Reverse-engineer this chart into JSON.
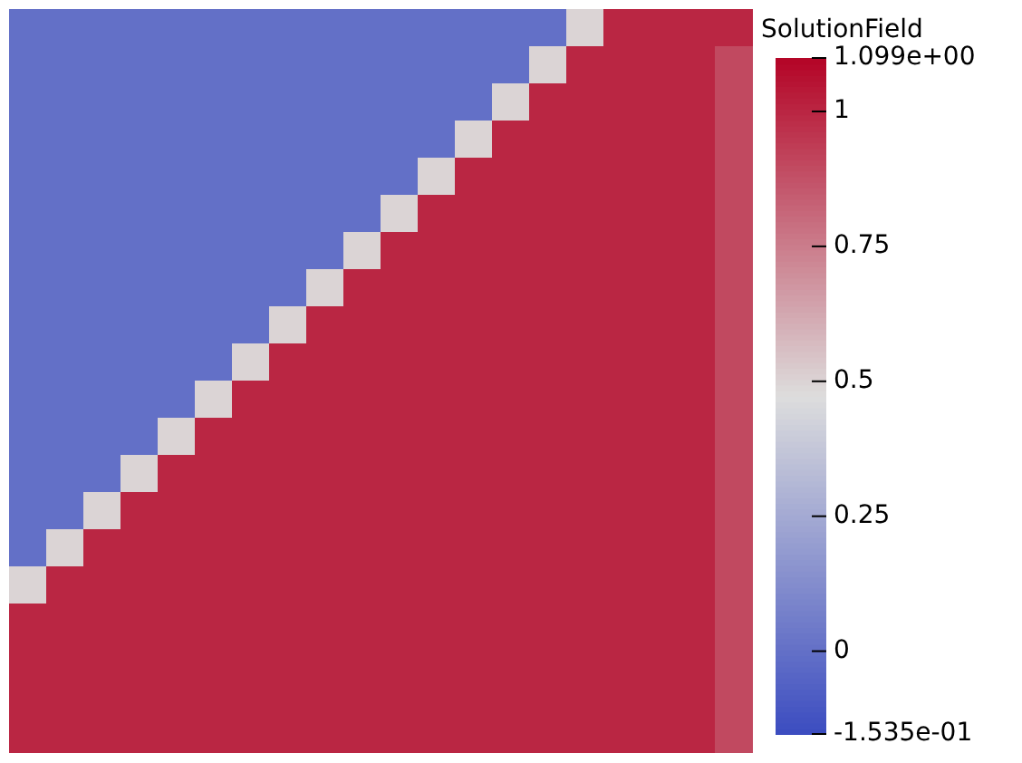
{
  "chart_data": {
    "type": "heatmap",
    "clabel": "SolutionField",
    "categories": [
      null,
      null,
      null,
      null,
      null,
      null,
      null,
      null,
      null,
      null,
      null,
      null,
      null,
      null,
      null,
      null,
      null,
      null,
      null,
      null
    ],
    "y_categories": [
      null,
      null,
      null,
      null,
      null,
      null,
      null,
      null,
      null,
      null,
      null,
      null,
      null,
      null,
      null,
      null,
      null,
      null,
      null,
      null
    ],
    "cells": [
      [
        0,
        0,
        0,
        0,
        0,
        0,
        0,
        0,
        0,
        0,
        0,
        0,
        0,
        0,
        0,
        0.5,
        1,
        1,
        1,
        1
      ],
      [
        0,
        0,
        0,
        0,
        0,
        0,
        0,
        0,
        0,
        0,
        0,
        0,
        0,
        0,
        0.5,
        1,
        1,
        1,
        1,
        0.9
      ],
      [
        0,
        0,
        0,
        0,
        0,
        0,
        0,
        0,
        0,
        0,
        0,
        0,
        0,
        0.5,
        1,
        1,
        1,
        1,
        1,
        0.9
      ],
      [
        0,
        0,
        0,
        0,
        0,
        0,
        0,
        0,
        0,
        0,
        0,
        0,
        0.5,
        1,
        1,
        1,
        1,
        1,
        1,
        0.9
      ],
      [
        0,
        0,
        0,
        0,
        0,
        0,
        0,
        0,
        0,
        0,
        0,
        0.5,
        1,
        1,
        1,
        1,
        1,
        1,
        1,
        0.9
      ],
      [
        0,
        0,
        0,
        0,
        0,
        0,
        0,
        0,
        0,
        0,
        0.5,
        1,
        1,
        1,
        1,
        1,
        1,
        1,
        1,
        0.9
      ],
      [
        0,
        0,
        0,
        0,
        0,
        0,
        0,
        0,
        0,
        0.5,
        1,
        1,
        1,
        1,
        1,
        1,
        1,
        1,
        1,
        0.9
      ],
      [
        0,
        0,
        0,
        0,
        0,
        0,
        0,
        0,
        0.5,
        1,
        1,
        1,
        1,
        1,
        1,
        1,
        1,
        1,
        1,
        0.9
      ],
      [
        0,
        0,
        0,
        0,
        0,
        0,
        0,
        0.5,
        1,
        1,
        1,
        1,
        1,
        1,
        1,
        1,
        1,
        1,
        1,
        0.9
      ],
      [
        0,
        0,
        0,
        0,
        0,
        0,
        0.5,
        1,
        1,
        1,
        1,
        1,
        1,
        1,
        1,
        1,
        1,
        1,
        1,
        0.9
      ],
      [
        0,
        0,
        0,
        0,
        0,
        0.5,
        1,
        1,
        1,
        1,
        1,
        1,
        1,
        1,
        1,
        1,
        1,
        1,
        1,
        0.9
      ],
      [
        0,
        0,
        0,
        0,
        0.5,
        1,
        1,
        1,
        1,
        1,
        1,
        1,
        1,
        1,
        1,
        1,
        1,
        1,
        1,
        0.9
      ],
      [
        0,
        0,
        0,
        0.5,
        1,
        1,
        1,
        1,
        1,
        1,
        1,
        1,
        1,
        1,
        1,
        1,
        1,
        1,
        1,
        0.9
      ],
      [
        0,
        0,
        0.5,
        1,
        1,
        1,
        1,
        1,
        1,
        1,
        1,
        1,
        1,
        1,
        1,
        1,
        1,
        1,
        1,
        0.9
      ],
      [
        0,
        0.5,
        1,
        1,
        1,
        1,
        1,
        1,
        1,
        1,
        1,
        1,
        1,
        1,
        1,
        1,
        1,
        1,
        1,
        0.9
      ],
      [
        0.5,
        1,
        1,
        1,
        1,
        1,
        1,
        1,
        1,
        1,
        1,
        1,
        1,
        1,
        1,
        1,
        1,
        1,
        1,
        0.9
      ],
      [
        1,
        1,
        1,
        1,
        1,
        1,
        1,
        1,
        1,
        1,
        1,
        1,
        1,
        1,
        1,
        1,
        1,
        1,
        1,
        0.9
      ],
      [
        1,
        1,
        1,
        1,
        1,
        1,
        1,
        1,
        1,
        1,
        1,
        1,
        1,
        1,
        1,
        1,
        1,
        1,
        1,
        0.9
      ],
      [
        1,
        1,
        1,
        1,
        1,
        1,
        1,
        1,
        1,
        1,
        1,
        1,
        1,
        1,
        1,
        1,
        1,
        1,
        1,
        0.9
      ],
      [
        1,
        1,
        1,
        1,
        1,
        1,
        1,
        1,
        1,
        1,
        1,
        1,
        1,
        1,
        1,
        1,
        1,
        1,
        1,
        0.9
      ]
    ],
    "clim": [
      -0.1535,
      1.099
    ],
    "cticks": [
      {
        "value": 1.099,
        "label": "1.099e+00"
      },
      1,
      0.75,
      0.5,
      0.25,
      0,
      {
        "value": -0.1535,
        "label": "-1.535e-01"
      }
    ]
  }
}
